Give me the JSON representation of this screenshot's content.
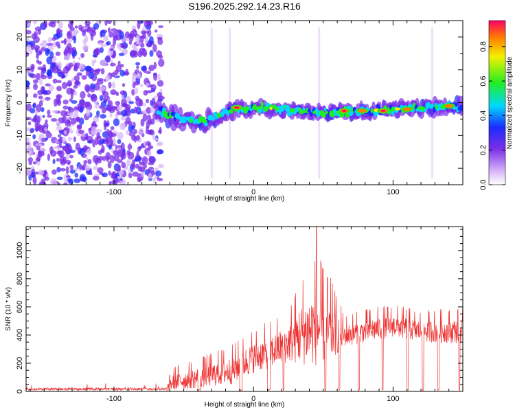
{
  "chart_data": [
    {
      "type": "heatmap",
      "title": "S196.2025.292.14.23.R16",
      "xlabel": "Height of straight line (km)",
      "ylabel": "Frequency (Hz)",
      "xlim": [
        -163,
        150
      ],
      "ylim": [
        -25,
        25
      ],
      "xticks": [
        -100,
        0,
        100
      ],
      "xtick_labels": [
        "-100",
        "0",
        "100"
      ],
      "yticks": [
        20,
        10,
        0,
        -10,
        -20
      ],
      "ytick_labels": [
        "20",
        "10",
        "0",
        "-10",
        "-20"
      ],
      "colorbar": {
        "label": "Normalized spectral amplitude",
        "range": [
          0,
          0.95
        ],
        "ticks": [
          0,
          0.2,
          0.4,
          0.6,
          0.8
        ],
        "tick_labels": [
          "0.0",
          "0.2",
          "0.4",
          "0.6",
          "0.8"
        ]
      },
      "noise_region_x": [
        -163,
        -70
      ],
      "trace": [
        {
          "x": -70,
          "f": -2
        },
        {
          "x": -60,
          "f": -4
        },
        {
          "x": -50,
          "f": -5
        },
        {
          "x": -40,
          "f": -6
        },
        {
          "x": -30,
          "f": -5
        },
        {
          "x": -20,
          "f": -3
        },
        {
          "x": -10,
          "f": -2
        },
        {
          "x": 0,
          "f": -1.5
        },
        {
          "x": 20,
          "f": -2
        },
        {
          "x": 40,
          "f": -3
        },
        {
          "x": 60,
          "f": -3
        },
        {
          "x": 80,
          "f": -2.5
        },
        {
          "x": 100,
          "f": -2
        },
        {
          "x": 120,
          "f": -1.5
        },
        {
          "x": 150,
          "f": -1
        }
      ],
      "hot_spots": [
        {
          "x": -12,
          "f": -1.5,
          "amp": 0.9
        },
        {
          "x": 65,
          "f": -2.5,
          "amp": 0.9
        },
        {
          "x": 78,
          "f": -2.5,
          "amp": 0.85
        },
        {
          "x": 93,
          "f": -2.5,
          "amp": 0.9
        },
        {
          "x": 110,
          "f": -2,
          "amp": 0.8
        },
        {
          "x": 140,
          "f": -1,
          "amp": 0.85
        }
      ]
    },
    {
      "type": "line",
      "xlabel": "Height of straight line (km)",
      "ylabel": "SNR (10 * v/v)",
      "xlim": [
        -163,
        150
      ],
      "ylim": [
        0,
        1170
      ],
      "xticks": [
        -100,
        0,
        100
      ],
      "xtick_labels": [
        "-100",
        "0",
        "100"
      ],
      "yticks": [
        0,
        200,
        400,
        600,
        800,
        1000
      ],
      "ytick_labels": [
        "0",
        "200",
        "400",
        "600",
        "800",
        "1000"
      ],
      "color": "#ee3333",
      "envelope": [
        {
          "x": -163,
          "base": 10,
          "spread": 20
        },
        {
          "x": -63,
          "base": 10,
          "spread": 25
        },
        {
          "x": -58,
          "base": 60,
          "spread": 120
        },
        {
          "x": -45,
          "base": 80,
          "spread": 140
        },
        {
          "x": -30,
          "base": 110,
          "spread": 170
        },
        {
          "x": -15,
          "base": 140,
          "spread": 200
        },
        {
          "x": 0,
          "base": 230,
          "spread": 220
        },
        {
          "x": 15,
          "base": 280,
          "spread": 240
        },
        {
          "x": 25,
          "base": 330,
          "spread": 280
        },
        {
          "x": 35,
          "base": 390,
          "spread": 450
        },
        {
          "x": 45,
          "base": 430,
          "spread": 560
        },
        {
          "x": 55,
          "base": 400,
          "spread": 420
        },
        {
          "x": 65,
          "base": 390,
          "spread": 160
        },
        {
          "x": 85,
          "base": 430,
          "spread": 170
        },
        {
          "x": 100,
          "base": 460,
          "spread": 160
        },
        {
          "x": 120,
          "base": 420,
          "spread": 160
        },
        {
          "x": 150,
          "base": 420,
          "spread": 180
        }
      ],
      "dropouts": [
        {
          "from": -40,
          "to": -38
        },
        {
          "from": -10,
          "to": -8
        },
        {
          "from": 10,
          "to": 12
        },
        {
          "from": 21,
          "to": 22
        },
        {
          "from": 51,
          "to": 52
        },
        {
          "from": 61,
          "to": 62
        },
        {
          "from": 75,
          "to": 76
        },
        {
          "from": 92,
          "to": 93
        },
        {
          "from": 110,
          "to": 111
        },
        {
          "from": 121,
          "to": 122
        },
        {
          "from": 132,
          "to": 133
        },
        {
          "from": 147,
          "to": 148
        }
      ],
      "peak": {
        "x": 45,
        "y": 1170
      }
    }
  ]
}
